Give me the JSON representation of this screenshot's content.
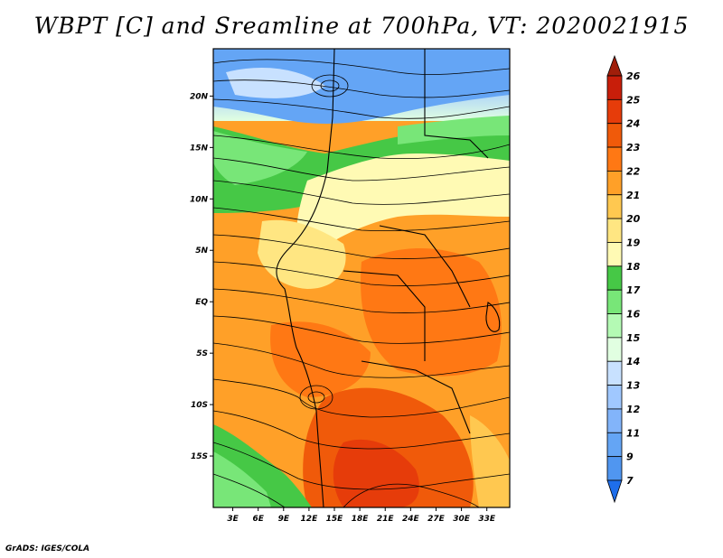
{
  "title": "WBPT [C] and Sreamline at 700hPa, VT: 2020021915",
  "footer": "GrADS: IGES/COLA",
  "map": {
    "lat_labels": [
      "20N",
      "15N",
      "10N",
      "5N",
      "EQ",
      "5S",
      "10S",
      "15S"
    ],
    "lat_values": [
      20,
      15,
      10,
      5,
      0,
      -5,
      -10,
      -15
    ],
    "lon_labels": [
      "3E",
      "6E",
      "9E",
      "12E",
      "15E",
      "18E",
      "21E",
      "24E",
      "27E",
      "30E",
      "33E"
    ],
    "lon_values": [
      3,
      6,
      9,
      12,
      15,
      18,
      21,
      24,
      27,
      30,
      33
    ],
    "lon_range": [
      0.7,
      35.7
    ],
    "lat_range": [
      -20.0,
      24.6
    ]
  },
  "colorbar": {
    "labels": [
      "7",
      "9",
      "11",
      "12",
      "13",
      "14",
      "15",
      "16",
      "17",
      "18",
      "19",
      "20",
      "21",
      "22",
      "23",
      "24",
      "25",
      "26"
    ],
    "colors": [
      "#1e6eeb",
      "#3c82f0",
      "#5096f0",
      "#64a5f5",
      "#82b4fa",
      "#a0c8ff",
      "#c8e1ff",
      "#e1ffe1",
      "#b4fab4",
      "#78e678",
      "#46c846",
      "#fffab4",
      "#ffe682",
      "#ffc850",
      "#ffa028",
      "#ff7814",
      "#f05a0a",
      "#e63c0a",
      "#c81e0a",
      "#a01e0a"
    ]
  }
}
